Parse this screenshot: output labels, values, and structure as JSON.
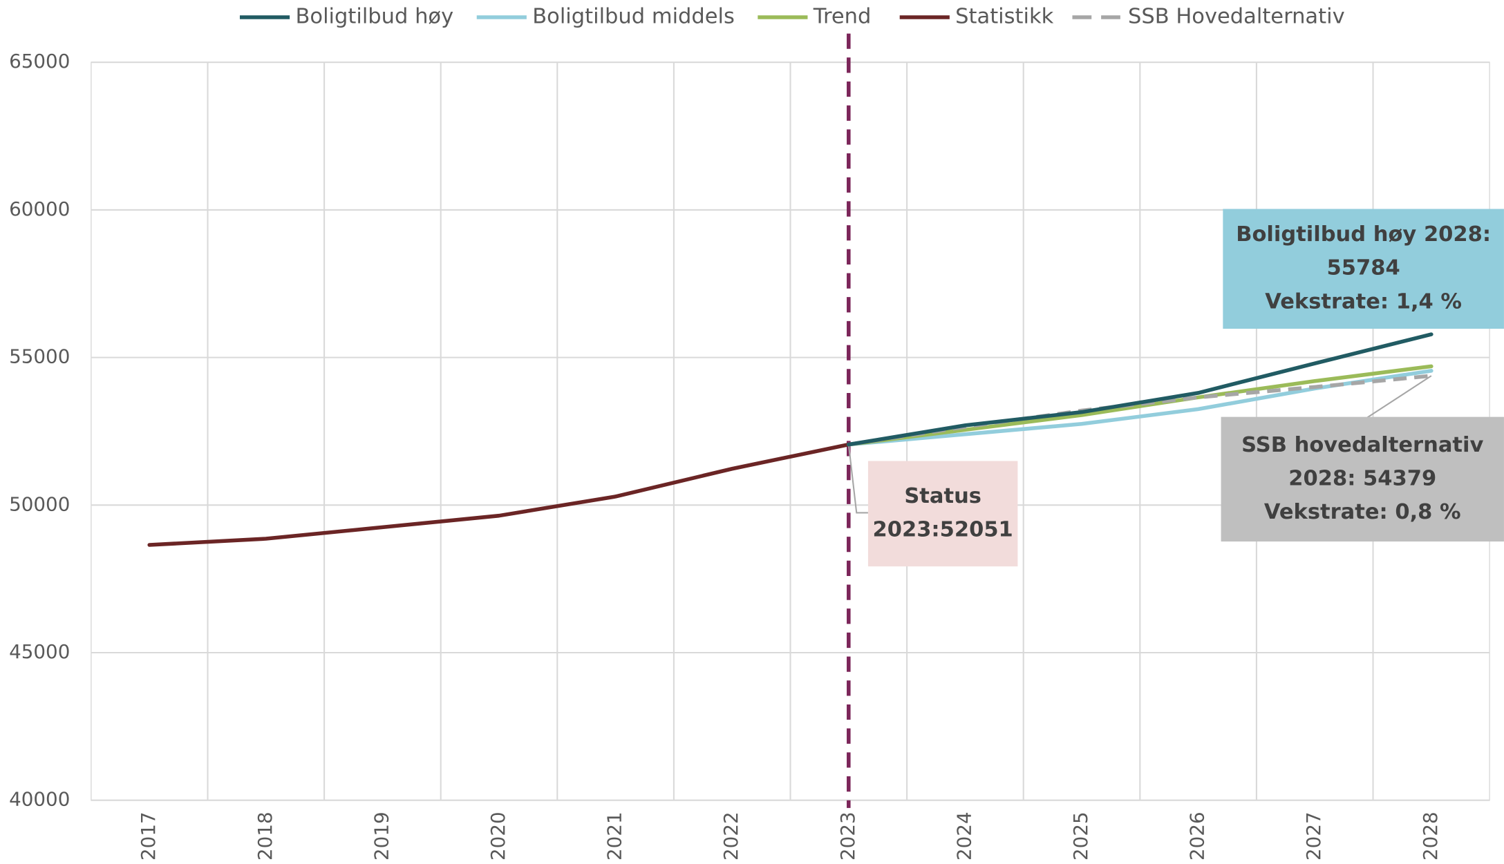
{
  "chart_data": {
    "type": "line",
    "categories": [
      "2017",
      "2018",
      "2019",
      "2020",
      "2021",
      "2022",
      "2023",
      "2024",
      "2025",
      "2026",
      "2027",
      "2028"
    ],
    "series": [
      {
        "name": "Boligtilbud høy",
        "color": "#215b63",
        "values": [
          null,
          null,
          null,
          null,
          null,
          null,
          52051,
          52700,
          53150,
          53800,
          54800,
          55784
        ]
      },
      {
        "name": "Boligtilbud middels",
        "color": "#92cddc",
        "values": [
          null,
          null,
          null,
          null,
          null,
          null,
          52051,
          52400,
          52750,
          53250,
          53950,
          54550
        ]
      },
      {
        "name": "Trend",
        "color": "#9bbb59",
        "values": [
          null,
          null,
          null,
          null,
          null,
          null,
          52051,
          52550,
          53050,
          53650,
          54200,
          54700
        ]
      },
      {
        "name": "Statistikk",
        "color": "#6b2525",
        "values": [
          48650,
          48860,
          49250,
          49640,
          50290,
          51230,
          52051,
          null,
          null,
          null,
          null,
          null
        ]
      },
      {
        "name": "SSB Hovedalternativ",
        "color": "#a6a6a6",
        "dashed": true,
        "values": [
          null,
          null,
          null,
          null,
          null,
          null,
          52051,
          52650,
          53200,
          53650,
          54000,
          54379
        ]
      }
    ],
    "ylim": [
      40000,
      65000
    ],
    "yticks": [
      40000,
      45000,
      50000,
      55000,
      60000,
      65000
    ],
    "grid": true,
    "legend": "top",
    "marker_line": {
      "category": "2023",
      "color": "#7b2559"
    },
    "annotations": [
      {
        "lines": [
          "Status",
          "2023:52051"
        ],
        "color": "#f2dcdb"
      },
      {
        "lines": [
          "Boligtilbud høy 2028:",
          "55784",
          "Vekstrate: 1,4 %"
        ],
        "color": "#92cddc"
      },
      {
        "lines": [
          "SSB hovedalternativ",
          "2028: 54379",
          "Vekstrate: 0,8 %"
        ],
        "color": "#bfbfbf"
      }
    ]
  }
}
